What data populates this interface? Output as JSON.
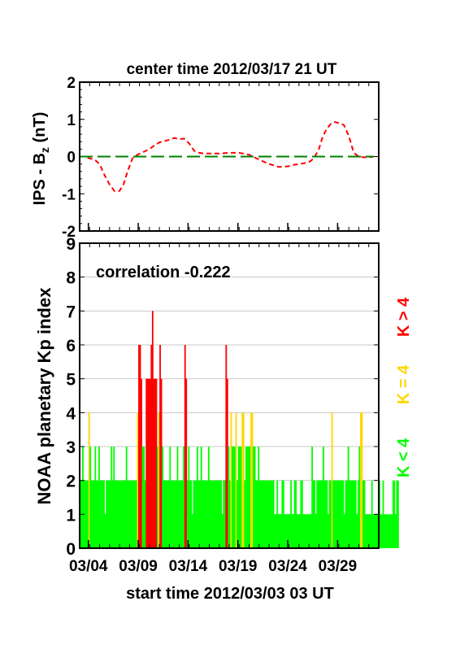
{
  "chart_data": [
    {
      "type": "line",
      "title": "center time 2012/03/17 21 UT",
      "ylabel_main": "IPS - B",
      "ylabel_sub": "z",
      "ylabel_unit": " (nT)",
      "ylim": [
        -2,
        2
      ],
      "yticks": [
        -2,
        -1,
        0,
        1,
        2
      ],
      "xlim_days": [
        0,
        30
      ],
      "series": [
        {
          "style": "dashed",
          "color": "#ff0000",
          "x": [
            0,
            0.5,
            1,
            1.5,
            2,
            2.5,
            3,
            3.5,
            4,
            4.4,
            4.8,
            5.3,
            5.8,
            6.2,
            6.6,
            7.0,
            7.5,
            8.0,
            8.5,
            9.0,
            9.5,
            10.0,
            10.5,
            11.0,
            11.5,
            12.0,
            12.5,
            13.0,
            13.5,
            14.0,
            15.0,
            16.0,
            17.0,
            18.0,
            19.0,
            20.0,
            20.5,
            21.0,
            21.5,
            22.0,
            22.5,
            23.0,
            23.5,
            24.0,
            24.4,
            24.8,
            25.2,
            25.6,
            26.0,
            26.5,
            27.0,
            27.5,
            28.0,
            28.5,
            29.0,
            29.5
          ],
          "y": [
            0,
            0,
            -0.05,
            -0.08,
            -0.2,
            -0.5,
            -0.75,
            -0.93,
            -0.92,
            -0.75,
            -0.4,
            -0.05,
            0.05,
            0.1,
            0.15,
            0.2,
            0.3,
            0.38,
            0.42,
            0.45,
            0.5,
            0.47,
            0.48,
            0.35,
            0.15,
            0.1,
            0.08,
            0.08,
            0.08,
            0.08,
            0.1,
            0.1,
            0.05,
            -0.08,
            -0.2,
            -0.28,
            -0.27,
            -0.26,
            -0.22,
            -0.2,
            -0.18,
            -0.15,
            -0.05,
            0.2,
            0.55,
            0.75,
            0.88,
            0.93,
            0.9,
            0.85,
            0.55,
            0.1,
            0.0,
            -0.02,
            -0.02,
            0.0
          ]
        },
        {
          "style": "long-dash",
          "color": "#008000",
          "x": [
            0,
            29.5
          ],
          "y": [
            0,
            0
          ]
        }
      ]
    },
    {
      "type": "bar",
      "annotation": "correlation -0.222",
      "ylabel": "NOAA planetary Kp index",
      "xlabel": "start time 2012/03/03 03 UT",
      "xtick_labels": [
        "03/04",
        "03/09",
        "03/14",
        "03/19",
        "03/24",
        "03/29"
      ],
      "xtick_days": [
        0.875,
        5.875,
        10.875,
        15.875,
        20.875,
        25.875
      ],
      "ylim": [
        0,
        9
      ],
      "yticks": [
        0,
        1,
        2,
        3,
        4,
        5,
        6,
        7,
        8,
        9
      ],
      "grid": true,
      "bin_hours": 3,
      "colors": {
        "low": "#00ff00",
        "mid": "#ffd700",
        "high": "#ff0000"
      },
      "kp": [
        2,
        2,
        3,
        2,
        2,
        2,
        2,
        4,
        3,
        2,
        2,
        2,
        3,
        2,
        2,
        3,
        2,
        2,
        2,
        2,
        1,
        2,
        2,
        2,
        2,
        3,
        2,
        3,
        2,
        2,
        2,
        2,
        2,
        2,
        2,
        2,
        2,
        3,
        2,
        2,
        2,
        2,
        2,
        2,
        2,
        2,
        4,
        6,
        6,
        5,
        3,
        3,
        2,
        5,
        5,
        5,
        5,
        6,
        7,
        5,
        5,
        5,
        3,
        4,
        6,
        5,
        3,
        2,
        2,
        2,
        2,
        2,
        3,
        2,
        2,
        2,
        2,
        2,
        3,
        2,
        2,
        2,
        2,
        3,
        6,
        5,
        2,
        3,
        2,
        2,
        1,
        2,
        2,
        2,
        3,
        2,
        2,
        3,
        2,
        2,
        2,
        2,
        2,
        3,
        2,
        2,
        2,
        2,
        2,
        2,
        2,
        2,
        2,
        2,
        1,
        2,
        2,
        6,
        5,
        3,
        2,
        4,
        3,
        3,
        3,
        4,
        2,
        3,
        3,
        3,
        4,
        4,
        2,
        3,
        3,
        3,
        3,
        4,
        4,
        3,
        3,
        2,
        2,
        3,
        2,
        2,
        2,
        2,
        2,
        2,
        2,
        2,
        2,
        2,
        2,
        2,
        1,
        1,
        2,
        1,
        1,
        1,
        2,
        2,
        1,
        1,
        1,
        1,
        1,
        2,
        1,
        1,
        2,
        2,
        1,
        1,
        1,
        2,
        2,
        1,
        1,
        1,
        1,
        1,
        1,
        1,
        3,
        2,
        2,
        1,
        2,
        2,
        2,
        2,
        2,
        3,
        2,
        2,
        2,
        1,
        2,
        2,
        4,
        2,
        2,
        2,
        2,
        2,
        2,
        2,
        2,
        2,
        1,
        2,
        2,
        3,
        2,
        2,
        2,
        2,
        2,
        2,
        1,
        2,
        3,
        4,
        4,
        2,
        2,
        1,
        1,
        1,
        1,
        1,
        2,
        1,
        1,
        1,
        1,
        1,
        2,
        1,
        1,
        2,
        1,
        1,
        1,
        1,
        1,
        1,
        1,
        2,
        2,
        1,
        2,
        2
      ],
      "side_labels": [
        "K < 4",
        "K = 4",
        "K > 4"
      ]
    }
  ]
}
